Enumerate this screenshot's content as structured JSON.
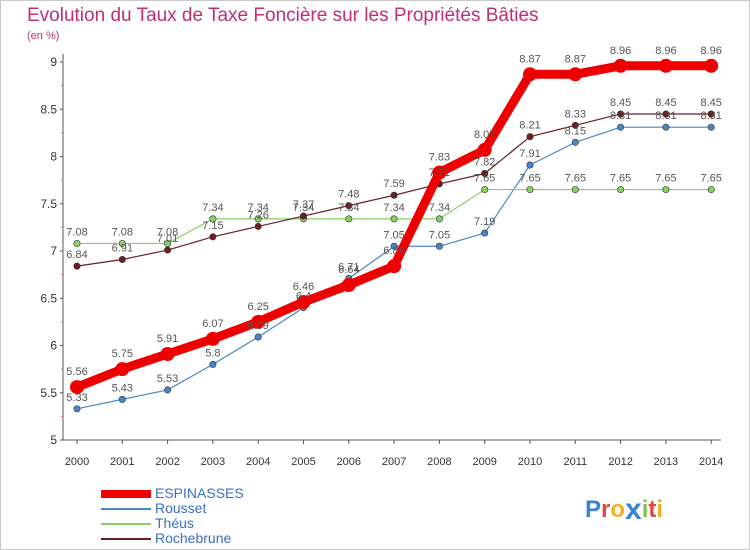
{
  "chart_data": {
    "type": "line",
    "title": "Evolution du Taux de Taxe Foncière sur les Propriétés Bâties",
    "subtitle": "(en %)",
    "xlabel": "",
    "ylabel": "",
    "ylim": [
      5,
      9
    ],
    "yticks": [
      "5",
      "5.5",
      "6",
      "6.5",
      "7",
      "7.5",
      "8",
      "8.5",
      "9"
    ],
    "categories": [
      "2000",
      "2001",
      "2002",
      "2003",
      "2004",
      "2005",
      "2006",
      "2007",
      "2008",
      "2009",
      "2010",
      "2011",
      "2012",
      "2013",
      "2014"
    ],
    "series": [
      {
        "name": "ESPINASSES",
        "color": "#ee0000",
        "emphasis": true,
        "values": [
          5.56,
          5.75,
          5.91,
          6.07,
          6.25,
          6.46,
          6.64,
          6.84,
          7.83,
          8.07,
          8.87,
          8.87,
          8.96,
          8.96,
          8.96
        ],
        "labels": [
          "5.56",
          "5.75",
          "5.91",
          "6.07",
          "6.25",
          "6.46",
          "6.64",
          "6.84",
          "7.83",
          "8.07",
          "8.87",
          "8.87",
          "8.96",
          "8.96",
          "8.96"
        ]
      },
      {
        "name": "Rousset",
        "color": "#4a86c6",
        "emphasis": false,
        "values": [
          5.33,
          5.43,
          5.53,
          5.8,
          6.09,
          6.4,
          6.71,
          7.05,
          7.05,
          7.19,
          7.91,
          8.15,
          8.31,
          8.31,
          8.31
        ],
        "labels": [
          "5.33",
          "5.43",
          "5.53",
          "5.8",
          "6.09",
          "6.4",
          "6.71",
          "7.05",
          "7.05",
          "7.19",
          "7.91",
          "8.15",
          "8.31",
          "8.31",
          "8.31"
        ]
      },
      {
        "name": "Théus",
        "color": "#88d060",
        "emphasis": false,
        "values": [
          7.08,
          7.08,
          7.08,
          7.34,
          7.34,
          7.34,
          7.34,
          7.34,
          7.34,
          7.65,
          7.65,
          7.65,
          7.65,
          7.65,
          7.65
        ],
        "labels": [
          "7.08",
          "7.08",
          "7.08",
          "7.34",
          "7.34",
          "7.34",
          "7.34",
          "7.34",
          "7.34",
          "7.65",
          "7.65",
          "7.65",
          "7.65",
          "7.65",
          "7.65"
        ]
      },
      {
        "name": "Rochebrune",
        "color": "#6b1f24",
        "emphasis": false,
        "values": [
          6.84,
          6.91,
          7.01,
          7.15,
          7.26,
          7.37,
          7.48,
          7.59,
          7.71,
          7.82,
          8.21,
          8.33,
          8.45,
          8.45,
          8.45
        ],
        "labels": [
          "6.84",
          "6.91",
          "7.01",
          "7.15",
          "7.26",
          "7.37",
          "7.48",
          "7.59",
          "7.71",
          "7.82",
          "8.21",
          "8.33",
          "8.45",
          "8.45",
          "8.45"
        ]
      }
    ],
    "grid": false,
    "legend_position": "bottom-left"
  },
  "brand": {
    "logo_letters": [
      "P",
      "r",
      "o",
      "x",
      "i",
      "t",
      "i"
    ],
    "logo_colors": [
      "#3a82d4",
      "#e0483c",
      "#f0b020",
      "#3a82d4",
      "#88c040",
      "#e0483c",
      "#f0b020"
    ]
  },
  "colors": {
    "title": "#c03070",
    "axis": "#555555",
    "tick_text": "#333333",
    "value_label": "#555555"
  }
}
